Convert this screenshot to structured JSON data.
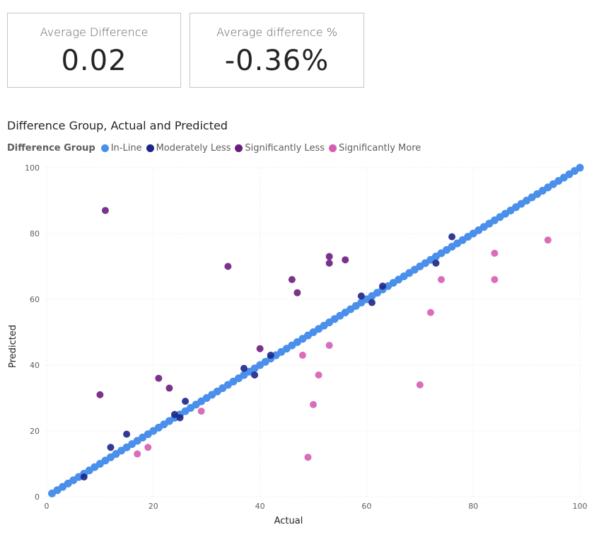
{
  "cards": [
    {
      "title": "Average Difference",
      "value": "0.02"
    },
    {
      "title": "Average difference %",
      "value": "-0.36%"
    }
  ],
  "chart_data": {
    "type": "scatter",
    "title": "Difference Group, Actual and Predicted",
    "legend_title": "Difference Group",
    "legend_position": "top-left",
    "xlabel": "Actual",
    "ylabel": "Predicted",
    "xlim": [
      0,
      100
    ],
    "ylim": [
      0,
      100
    ],
    "x_ticks": [
      0,
      20,
      40,
      60,
      80,
      100
    ],
    "y_ticks": [
      0,
      20,
      40,
      60,
      80,
      100
    ],
    "grid": true,
    "series": [
      {
        "name": "In-Line",
        "color": "#4a8fea",
        "points": [
          [
            1,
            1
          ],
          [
            2,
            2
          ],
          [
            3,
            3
          ],
          [
            4,
            4
          ],
          [
            5,
            5
          ],
          [
            6,
            6
          ],
          [
            7,
            7
          ],
          [
            8,
            8
          ],
          [
            9,
            9
          ],
          [
            10,
            10
          ],
          [
            11,
            11
          ],
          [
            12,
            12
          ],
          [
            13,
            13
          ],
          [
            14,
            14
          ],
          [
            15,
            15
          ],
          [
            16,
            16
          ],
          [
            17,
            17
          ],
          [
            18,
            18
          ],
          [
            19,
            19
          ],
          [
            20,
            20
          ],
          [
            21,
            21
          ],
          [
            22,
            22
          ],
          [
            23,
            23
          ],
          [
            24,
            24
          ],
          [
            25,
            25
          ],
          [
            26,
            26
          ],
          [
            27,
            27
          ],
          [
            28,
            28
          ],
          [
            29,
            29
          ],
          [
            30,
            30
          ],
          [
            31,
            31
          ],
          [
            32,
            32
          ],
          [
            33,
            33
          ],
          [
            34,
            34
          ],
          [
            35,
            35
          ],
          [
            36,
            36
          ],
          [
            37,
            37
          ],
          [
            38,
            38
          ],
          [
            39,
            39
          ],
          [
            40,
            40
          ],
          [
            41,
            41
          ],
          [
            42,
            42
          ],
          [
            43,
            43
          ],
          [
            44,
            44
          ],
          [
            45,
            45
          ],
          [
            46,
            46
          ],
          [
            47,
            47
          ],
          [
            48,
            48
          ],
          [
            49,
            49
          ],
          [
            50,
            50
          ],
          [
            51,
            51
          ],
          [
            52,
            52
          ],
          [
            53,
            53
          ],
          [
            54,
            54
          ],
          [
            55,
            55
          ],
          [
            56,
            56
          ],
          [
            57,
            57
          ],
          [
            58,
            58
          ],
          [
            59,
            59
          ],
          [
            60,
            60
          ],
          [
            61,
            61
          ],
          [
            62,
            62
          ],
          [
            63,
            63
          ],
          [
            64,
            64
          ],
          [
            65,
            65
          ],
          [
            66,
            66
          ],
          [
            67,
            67
          ],
          [
            68,
            68
          ],
          [
            69,
            69
          ],
          [
            70,
            70
          ],
          [
            71,
            71
          ],
          [
            72,
            72
          ],
          [
            73,
            73
          ],
          [
            74,
            74
          ],
          [
            75,
            75
          ],
          [
            76,
            76
          ],
          [
            77,
            77
          ],
          [
            78,
            78
          ],
          [
            79,
            79
          ],
          [
            80,
            80
          ],
          [
            81,
            81
          ],
          [
            82,
            82
          ],
          [
            83,
            83
          ],
          [
            84,
            84
          ],
          [
            85,
            85
          ],
          [
            86,
            86
          ],
          [
            87,
            87
          ],
          [
            88,
            88
          ],
          [
            89,
            89
          ],
          [
            90,
            90
          ],
          [
            91,
            91
          ],
          [
            92,
            92
          ],
          [
            93,
            93
          ],
          [
            94,
            94
          ],
          [
            95,
            95
          ],
          [
            96,
            96
          ],
          [
            97,
            97
          ],
          [
            98,
            98
          ],
          [
            99,
            99
          ],
          [
            100,
            100
          ]
        ]
      },
      {
        "name": "Moderately Less",
        "color": "#1c2687",
        "points": [
          [
            7,
            6
          ],
          [
            12,
            15
          ],
          [
            15,
            19
          ],
          [
            24,
            25
          ],
          [
            25,
            24
          ],
          [
            26,
            29
          ],
          [
            37,
            39
          ],
          [
            39,
            37
          ],
          [
            42,
            43
          ],
          [
            59,
            61
          ],
          [
            61,
            59
          ],
          [
            63,
            64
          ],
          [
            73,
            71
          ],
          [
            76,
            79
          ]
        ]
      },
      {
        "name": "Significantly Less",
        "color": "#6b1d7d",
        "points": [
          [
            10,
            31
          ],
          [
            11,
            87
          ],
          [
            21,
            36
          ],
          [
            23,
            33
          ],
          [
            34,
            70
          ],
          [
            40,
            45
          ],
          [
            46,
            66
          ],
          [
            47,
            62
          ],
          [
            53,
            73
          ],
          [
            53,
            71
          ],
          [
            56,
            72
          ]
        ]
      },
      {
        "name": "Significantly More",
        "color": "#d65db1",
        "points": [
          [
            17,
            13
          ],
          [
            19,
            15
          ],
          [
            29,
            26
          ],
          [
            48,
            43
          ],
          [
            49,
            12
          ],
          [
            50,
            28
          ],
          [
            51,
            37
          ],
          [
            53,
            46
          ],
          [
            70,
            34
          ],
          [
            72,
            56
          ],
          [
            74,
            66
          ],
          [
            84,
            74
          ],
          [
            84,
            66
          ],
          [
            94,
            78
          ]
        ]
      }
    ]
  }
}
